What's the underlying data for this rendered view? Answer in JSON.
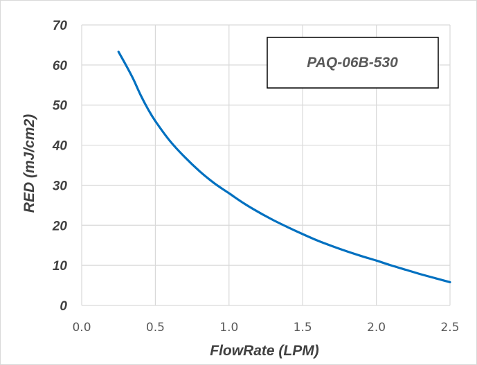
{
  "chart_data": {
    "type": "line",
    "title": "",
    "xlabel": "FlowRate (LPM)",
    "ylabel": "RED (mJ/cm2)",
    "xlim": [
      0,
      2.5
    ],
    "ylim": [
      0,
      70
    ],
    "x_ticks": [
      "0.0",
      "0.5",
      "1.0",
      "1.5",
      "2.0",
      "2.5"
    ],
    "y_ticks": [
      "0",
      "10",
      "20",
      "30",
      "40",
      "50",
      "60",
      "70"
    ],
    "grid": true,
    "legend_placement": "top-right",
    "series": [
      {
        "name": "PAQ-06B-530",
        "color": "#0070c0",
        "x": [
          0.25,
          0.3,
          0.35,
          0.4,
          0.45,
          0.5,
          0.6,
          0.7,
          0.8,
          0.9,
          1.0,
          1.1,
          1.2,
          1.3,
          1.4,
          1.5,
          1.6,
          1.7,
          1.8,
          1.9,
          2.0,
          2.1,
          2.2,
          2.3,
          2.4,
          2.5
        ],
        "y": [
          63.3,
          60.0,
          56.5,
          52.5,
          49.0,
          46.0,
          41.0,
          37.0,
          33.5,
          30.5,
          28.0,
          25.5,
          23.3,
          21.3,
          19.5,
          17.8,
          16.2,
          14.8,
          13.5,
          12.3,
          11.2,
          10.0,
          8.9,
          7.8,
          6.8,
          5.8
        ]
      }
    ]
  }
}
